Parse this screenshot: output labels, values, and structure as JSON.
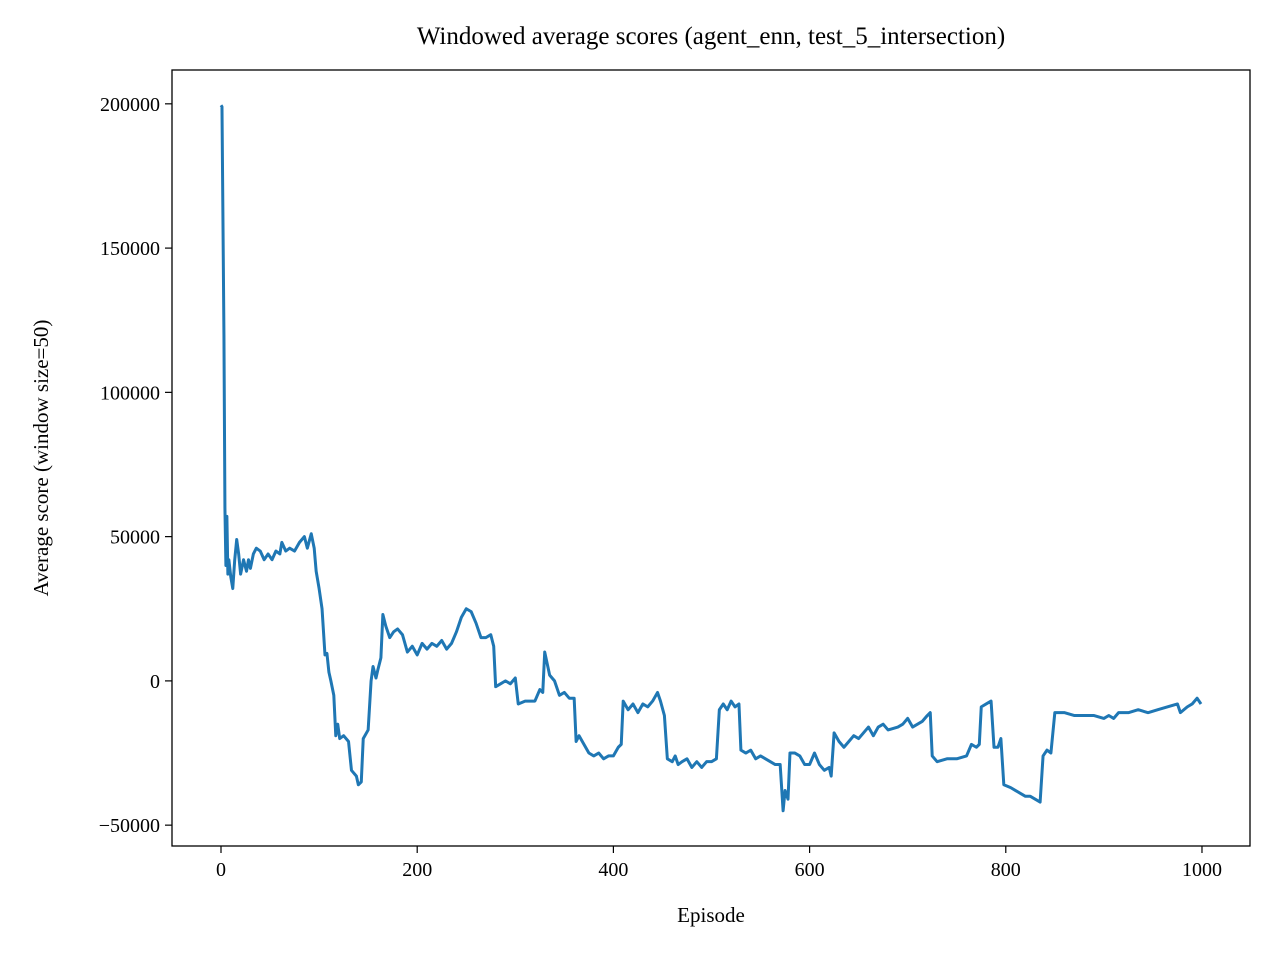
{
  "chart_data": {
    "type": "line",
    "title": "Windowed average scores (agent_enn, test_5_intersection)",
    "x_label": "Episode",
    "y_label": "Average score (window size=50)",
    "x": [
      0,
      1,
      3,
      4,
      5,
      6,
      7,
      8,
      10,
      12,
      14,
      16,
      18,
      20,
      23,
      26,
      28,
      30,
      33,
      36,
      40,
      44,
      48,
      52,
      56,
      60,
      62,
      66,
      70,
      75,
      80,
      85,
      88,
      92,
      95,
      97,
      100,
      103,
      106,
      108,
      110,
      112,
      115,
      117,
      119,
      121,
      125,
      130,
      133,
      138,
      140,
      143,
      145,
      150,
      153,
      155,
      158,
      160,
      163,
      165,
      168,
      172,
      176,
      180,
      185,
      190,
      195,
      200,
      205,
      210,
      215,
      220,
      225,
      230,
      235,
      240,
      245,
      250,
      255,
      260,
      265,
      270,
      275,
      278,
      280,
      285,
      290,
      295,
      300,
      303,
      310,
      320,
      325,
      328,
      330,
      335,
      340,
      345,
      350,
      355,
      360,
      362,
      365,
      370,
      375,
      380,
      385,
      390,
      395,
      400,
      405,
      408,
      410,
      415,
      420,
      425,
      430,
      435,
      440,
      445,
      448,
      452,
      455,
      460,
      463,
      466,
      470,
      475,
      480,
      485,
      490,
      495,
      500,
      505,
      508,
      512,
      516,
      520,
      524,
      528,
      530,
      535,
      540,
      545,
      550,
      555,
      560,
      565,
      570,
      573,
      575,
      578,
      580,
      585,
      590,
      595,
      600,
      605,
      610,
      615,
      620,
      622,
      625,
      630,
      635,
      640,
      645,
      650,
      655,
      660,
      665,
      670,
      675,
      680,
      690,
      695,
      700,
      705,
      710,
      715,
      720,
      723,
      725,
      730,
      740,
      750,
      760,
      765,
      770,
      773,
      775,
      780,
      785,
      788,
      792,
      795,
      798,
      805,
      810,
      815,
      820,
      825,
      830,
      835,
      838,
      842,
      846,
      850,
      860,
      870,
      880,
      890,
      900,
      905,
      910,
      915,
      925,
      935,
      945,
      955,
      965,
      975,
      978,
      985,
      990,
      995,
      999
    ],
    "series": [
      {
        "name": "agent_enn",
        "color": "#1f77b4",
        "values": [
          199500,
          199000,
          120000,
          60000,
          40000,
          57000,
          37000,
          42000,
          36000,
          32000,
          42000,
          49000,
          44000,
          37000,
          42000,
          38000,
          42000,
          39000,
          44000,
          46000,
          45000,
          42000,
          44000,
          42000,
          45000,
          44000,
          48000,
          45000,
          46000,
          45000,
          48000,
          50000,
          46000,
          51000,
          46000,
          38000,
          32000,
          25000,
          9000,
          9500,
          3000,
          0,
          -5000,
          -19000,
          -15000,
          -20000,
          -19000,
          -21000,
          -31000,
          -33000,
          -36000,
          -35000,
          -20000,
          -17000,
          0,
          5000,
          1000,
          4000,
          8000,
          23000,
          19000,
          15000,
          17000,
          18000,
          16000,
          10000,
          12000,
          9000,
          13000,
          11000,
          13000,
          12000,
          14000,
          11000,
          13000,
          17000,
          22000,
          25000,
          24000,
          20000,
          15000,
          15000,
          16000,
          12000,
          -2000,
          -1000,
          0,
          -1000,
          1000,
          -8000,
          -7000,
          -7000,
          -3000,
          -4000,
          10000,
          2000,
          0,
          -5000,
          -4000,
          -6000,
          -6000,
          -21000,
          -19000,
          -22000,
          -25000,
          -26000,
          -25000,
          -27000,
          -26000,
          -26000,
          -23000,
          -22000,
          -7000,
          -10000,
          -8000,
          -11000,
          -8000,
          -9000,
          -7000,
          -4000,
          -7000,
          -12000,
          -27000,
          -28000,
          -26000,
          -29000,
          -28000,
          -27000,
          -30000,
          -28000,
          -30000,
          -28000,
          -28000,
          -27000,
          -10000,
          -8000,
          -10000,
          -7000,
          -9000,
          -8000,
          -24000,
          -25000,
          -24000,
          -27000,
          -26000,
          -27000,
          -28000,
          -29000,
          -29000,
          -45000,
          -38000,
          -41000,
          -25000,
          -25000,
          -26000,
          -29000,
          -29000,
          -25000,
          -29000,
          -31000,
          -30000,
          -33000,
          -18000,
          -21000,
          -23000,
          -21000,
          -19000,
          -20000,
          -18000,
          -16000,
          -19000,
          -16000,
          -15000,
          -17000,
          -16000,
          -15000,
          -13000,
          -16000,
          -15000,
          -14000,
          -12000,
          -11000,
          -26000,
          -28000,
          -27000,
          -27000,
          -26000,
          -22000,
          -23000,
          -22000,
          -9000,
          -8000,
          -7000,
          -23000,
          -23000,
          -20000,
          -36000,
          -37000,
          -38000,
          -39000,
          -40000,
          -40000,
          -41000,
          -42000,
          -26000,
          -24000,
          -25000,
          -11000,
          -11000,
          -12000,
          -12000,
          -12000,
          -13000,
          -12000,
          -13000,
          -11000,
          -11000,
          -10000,
          -11000,
          -10000,
          -9000,
          -8000,
          -11000,
          -9000,
          -8000,
          -6000,
          -8000
        ]
      }
    ],
    "xlim": [
      -49.95,
      1048.95
    ],
    "ylim": [
      -57225,
      211725
    ],
    "xticks": [
      0,
      200,
      400,
      600,
      800,
      1000
    ],
    "yticks": [
      {
        "value": -50000,
        "label": "−50000"
      },
      0,
      50000,
      100000,
      150000,
      200000
    ],
    "grid": false
  }
}
